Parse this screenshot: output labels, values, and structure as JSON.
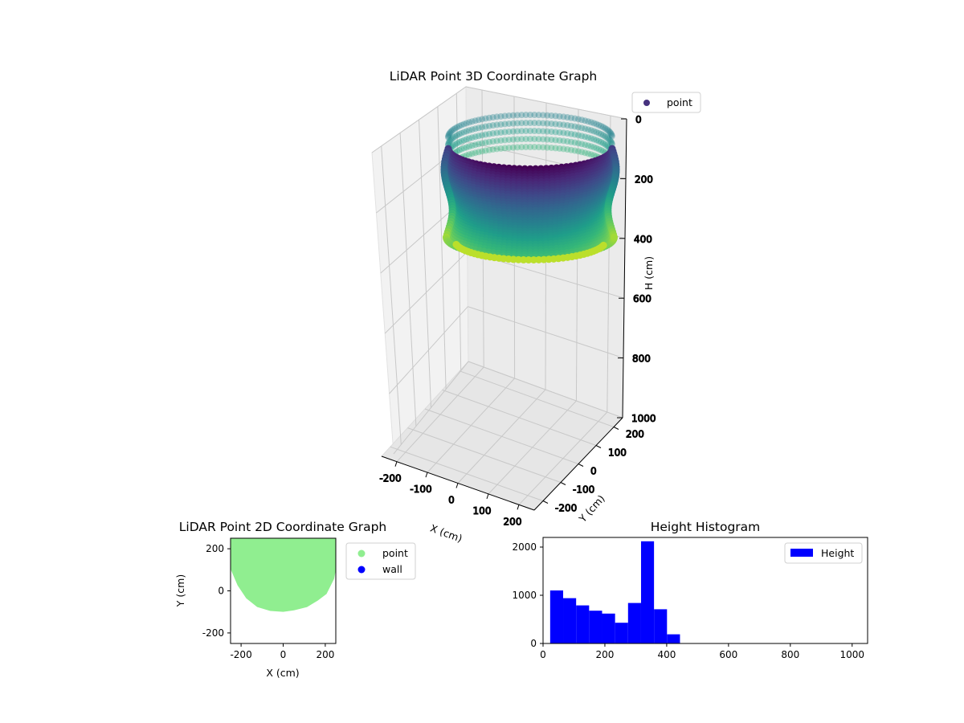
{
  "chart_data": [
    {
      "id": "lidar-3d",
      "type": "scatter3d",
      "title": "LiDAR Point 3D Coordinate Graph",
      "xlabel": "X (cm)",
      "ylabel": "Y (cm)",
      "zlabel": "H (cm)",
      "xticks": [
        -200,
        -100,
        0,
        100,
        200
      ],
      "yticks": [
        -200,
        -100,
        0,
        100,
        200
      ],
      "zticks": [
        0,
        200,
        400,
        600,
        800,
        1000
      ],
      "xlim": [
        -250,
        250
      ],
      "ylim": [
        -250,
        250
      ],
      "zlim": [
        1000,
        0
      ],
      "legend": [
        "point"
      ],
      "legend_colors": [
        "#46327e"
      ],
      "colormap": "viridis",
      "series": [
        {
          "name": "point",
          "shape": "cylinder",
          "x_range": [
            -240,
            240
          ],
          "y_range": [
            -240,
            240
          ],
          "h_range": [
            0,
            450
          ]
        }
      ]
    },
    {
      "id": "lidar-2d",
      "type": "scatter",
      "title": "LiDAR Point 2D Coordinate Graph",
      "xlabel": "X (cm)",
      "ylabel": "Y (cm)",
      "xticks": [
        -200,
        0,
        200
      ],
      "yticks": [
        -200,
        0,
        200
      ],
      "xlim": [
        -250,
        250
      ],
      "ylim": [
        -250,
        250
      ],
      "legend": [
        "point",
        "wall"
      ],
      "legend_colors": [
        "#90ee90",
        "#0000ff"
      ],
      "series": [
        {
          "name": "point",
          "color": "#90ee90",
          "outline": [
            [
              -250,
              250
            ],
            [
              -250,
              170
            ],
            [
              -240,
              100
            ],
            [
              -210,
              30
            ],
            [
              -170,
              -30
            ],
            [
              -120,
              -70
            ],
            [
              -60,
              -88
            ],
            [
              0,
              -92
            ],
            [
              50,
              -85
            ],
            [
              110,
              -70
            ],
            [
              160,
              -40
            ],
            [
              200,
              -10
            ],
            [
              235,
              60
            ],
            [
              250,
              140
            ],
            [
              250,
              250
            ]
          ]
        },
        {
          "name": "wall",
          "color": "#0000ff",
          "points": []
        }
      ]
    },
    {
      "id": "height-hist",
      "type": "bar",
      "title": "Height Histogram",
      "xticks": [
        0,
        200,
        400,
        600,
        800,
        1000
      ],
      "yticks": [
        0,
        1000,
        2000
      ],
      "xlim": [
        0,
        1050
      ],
      "ylim": [
        0,
        2200
      ],
      "legend": [
        "Height"
      ],
      "series": [
        {
          "name": "Height",
          "color": "#0000ff",
          "bin_edges": [
            23,
            65,
            107,
            149,
            191,
            233,
            275,
            317,
            359,
            401,
            443
          ],
          "values": [
            1100,
            940,
            790,
            680,
            620,
            430,
            840,
            2120,
            710,
            190
          ]
        }
      ]
    }
  ]
}
